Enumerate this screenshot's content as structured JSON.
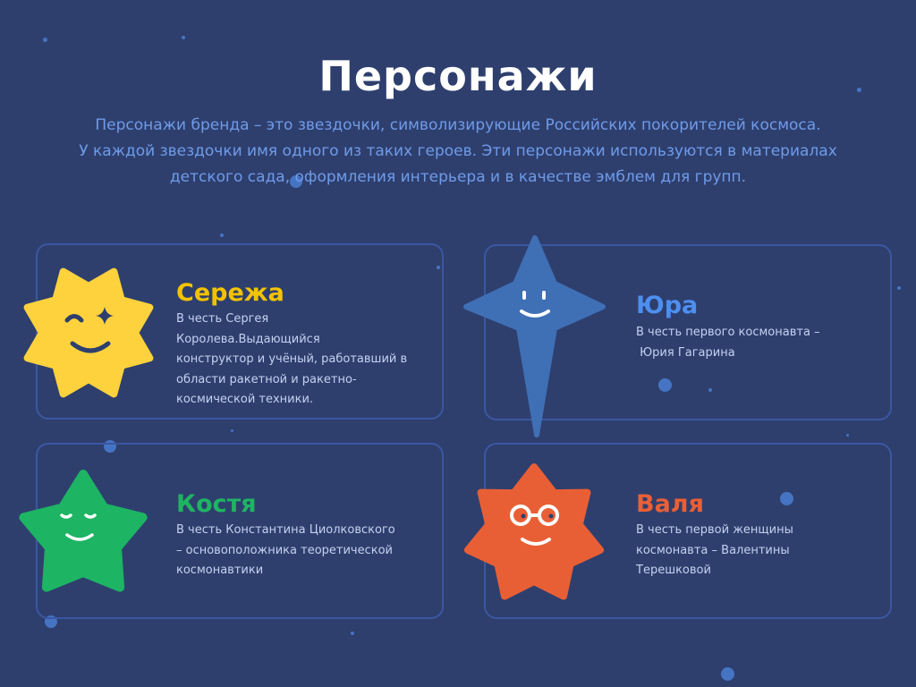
{
  "page": {
    "title": "Персонажи",
    "subtitle_lines": [
      "Персонажи бренда – это звездочки, символизирующие Российских покорителей космоса.",
      "У каждой звездочки имя одного из таких героев. Эти персонажи используются в материалах",
      "детского сада, оформления интерьера и в качестве эмблем для групп."
    ]
  },
  "colors": {
    "background": "#2e3f6e",
    "card_border": "#3c57a0",
    "subtitle": "#6f9be8"
  },
  "characters": [
    {
      "name": "Сережа",
      "color": "#f3c200",
      "star_color": "#fdd23c",
      "icon": "winking-star-icon",
      "desc_lines": [
        "В честь Сергея Королева.Выдающийся",
        "конструктор и учёный, работавший в",
        "области ракетной и ракетно-",
        "космической техники."
      ]
    },
    {
      "name": "Юра",
      "color": "#4d8ff0",
      "star_color": "#3f6fb5",
      "icon": "four-point-star-icon",
      "desc_lines": [
        "В честь первого космонавта –",
        " Юрия Гагарина"
      ]
    },
    {
      "name": "Костя",
      "color": "#1fb462",
      "star_color": "#1db463",
      "icon": "sleepy-star-icon",
      "desc_lines": [
        "В честь Константина Циолковского",
        "– основоположника теоретической",
        "космонавтики"
      ]
    },
    {
      "name": "Валя",
      "color": "#ea5f35",
      "star_color": "#e95f35",
      "icon": "glasses-star-icon",
      "desc_lines": [
        "В честь первой женщины",
        "космонавта – Валентины",
        "Терешковой"
      ]
    }
  ]
}
